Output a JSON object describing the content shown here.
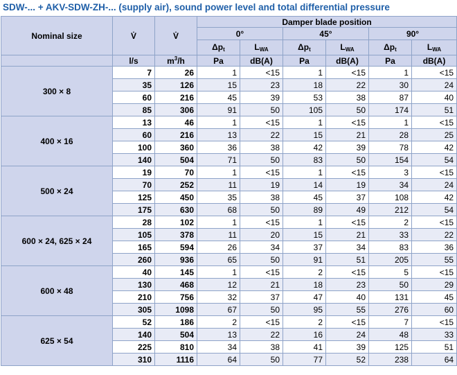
{
  "title": "SDW-... + AKV-SDW-ZH-... (supply air), sound power level and total differential pressure",
  "header": {
    "nominal_size": "Nominal size",
    "v_sym": "V̇",
    "damper": "Damper blade position",
    "positions": [
      "0°",
      "45°",
      "90°"
    ],
    "dp": "Δp",
    "dp_sub": "t",
    "lw": "L",
    "lw_sub": "WA",
    "unit_ls": "l/s",
    "unit_m3h": "m",
    "unit_m3h_sup": "3",
    "unit_m3h_tail": "/h",
    "unit_pa": "Pa",
    "unit_dba": "dB(A)"
  },
  "groups": [
    {
      "size": "300 × 8",
      "rows": [
        [
          "7",
          "26",
          "1",
          "<15",
          "1",
          "<15",
          "1",
          "<15"
        ],
        [
          "35",
          "126",
          "15",
          "23",
          "18",
          "22",
          "30",
          "24"
        ],
        [
          "60",
          "216",
          "45",
          "39",
          "53",
          "38",
          "87",
          "40"
        ],
        [
          "85",
          "306",
          "91",
          "50",
          "105",
          "50",
          "174",
          "51"
        ]
      ]
    },
    {
      "size": "400 × 16",
      "rows": [
        [
          "13",
          "46",
          "1",
          "<15",
          "1",
          "<15",
          "1",
          "<15"
        ],
        [
          "60",
          "216",
          "13",
          "22",
          "15",
          "21",
          "28",
          "25"
        ],
        [
          "100",
          "360",
          "36",
          "38",
          "42",
          "39",
          "78",
          "42"
        ],
        [
          "140",
          "504",
          "71",
          "50",
          "83",
          "50",
          "154",
          "54"
        ]
      ]
    },
    {
      "size": "500 × 24",
      "rows": [
        [
          "19",
          "70",
          "1",
          "<15",
          "1",
          "<15",
          "3",
          "<15"
        ],
        [
          "70",
          "252",
          "11",
          "19",
          "14",
          "19",
          "34",
          "24"
        ],
        [
          "125",
          "450",
          "35",
          "38",
          "45",
          "37",
          "108",
          "42"
        ],
        [
          "175",
          "630",
          "68",
          "50",
          "89",
          "49",
          "212",
          "54"
        ]
      ]
    },
    {
      "size": "600 × 24, 625 × 24",
      "rows": [
        [
          "28",
          "102",
          "1",
          "<15",
          "1",
          "<15",
          "2",
          "<15"
        ],
        [
          "105",
          "378",
          "11",
          "20",
          "15",
          "21",
          "33",
          "22"
        ],
        [
          "165",
          "594",
          "26",
          "34",
          "37",
          "34",
          "83",
          "36"
        ],
        [
          "260",
          "936",
          "65",
          "50",
          "91",
          "51",
          "205",
          "55"
        ]
      ]
    },
    {
      "size": "600 × 48",
      "rows": [
        [
          "40",
          "145",
          "1",
          "<15",
          "2",
          "<15",
          "5",
          "<15"
        ],
        [
          "130",
          "468",
          "12",
          "21",
          "18",
          "23",
          "50",
          "29"
        ],
        [
          "210",
          "756",
          "32",
          "37",
          "47",
          "40",
          "131",
          "45"
        ],
        [
          "305",
          "1098",
          "67",
          "50",
          "95",
          "55",
          "276",
          "60"
        ]
      ]
    },
    {
      "size": "625 × 54",
      "rows": [
        [
          "52",
          "186",
          "2",
          "<15",
          "2",
          "<15",
          "7",
          "<15"
        ],
        [
          "140",
          "504",
          "13",
          "22",
          "16",
          "24",
          "48",
          "33"
        ],
        [
          "225",
          "810",
          "34",
          "38",
          "41",
          "39",
          "125",
          "51"
        ],
        [
          "310",
          "1116",
          "64",
          "50",
          "77",
          "52",
          "238",
          "64"
        ]
      ]
    }
  ]
}
